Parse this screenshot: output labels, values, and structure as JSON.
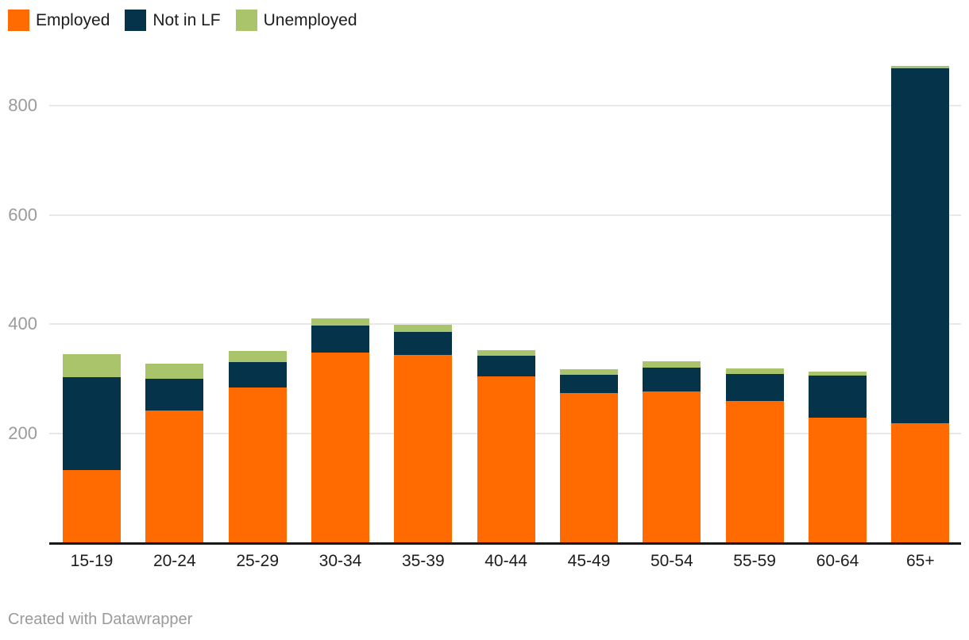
{
  "footer": {
    "text": "Created with Datawrapper"
  },
  "chart_data": {
    "type": "bar",
    "stacked": true,
    "title": "",
    "xlabel": "",
    "ylabel": "",
    "grid": "horizontal",
    "legend_position": "top-left",
    "categories": [
      "15-19",
      "20-24",
      "25-29",
      "30-34",
      "35-39",
      "40-44",
      "45-49",
      "50-54",
      "55-59",
      "60-64",
      "65+"
    ],
    "series": [
      {
        "name": "Employed",
        "color": "#ff6b00",
        "values": [
          132,
          242,
          284,
          347,
          343,
          304,
          273,
          277,
          259,
          229,
          218
        ]
      },
      {
        "name": "Not in LF",
        "color": "#05334a",
        "values": [
          170,
          57,
          46,
          50,
          42,
          38,
          34,
          43,
          49,
          77,
          650
        ]
      },
      {
        "name": "Unemployed",
        "color": "#a9c46a",
        "values": [
          43,
          29,
          20,
          13,
          14,
          10,
          10,
          12,
          11,
          7,
          5
        ]
      }
    ],
    "yticks": [
      200,
      400,
      600,
      800
    ],
    "ylim": [
      0,
      880
    ],
    "colors": {
      "gridline": "#e8e8e8",
      "axis_line": "#17191c",
      "y_tick_text": "#9b9b9b",
      "x_tick_text": "#1d1d1d"
    }
  }
}
